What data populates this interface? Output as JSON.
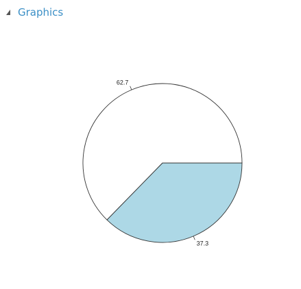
{
  "section": {
    "title": "Graphics"
  },
  "chart_data": {
    "type": "pie",
    "categories": [
      "62.7",
      "37.3"
    ],
    "values": [
      62.7,
      37.3
    ],
    "slice_labels": [
      "62.7",
      "37.3"
    ],
    "colors": [
      "#ffffff",
      "#add8e6"
    ],
    "border_color": "#333333",
    "start_angle_deg": 0,
    "direction": "clockwise-in-screen",
    "title": "",
    "legend": "none"
  }
}
